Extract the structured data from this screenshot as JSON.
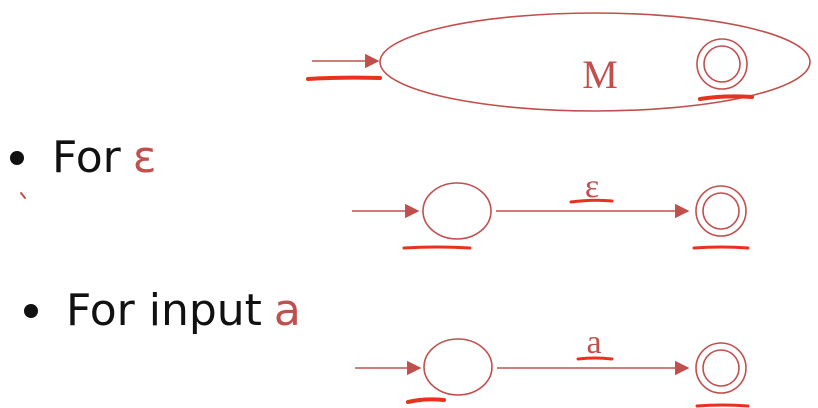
{
  "machine": {
    "label": "M"
  },
  "bullets": [
    {
      "text": "For",
      "symbol": "ε"
    },
    {
      "text": "For input",
      "symbol": "a"
    }
  ],
  "transitions": [
    {
      "label": "ε"
    },
    {
      "label": "a"
    }
  ],
  "colors": {
    "diagram": "#c0504d",
    "highlight": "#e8321e",
    "text": "#111111"
  }
}
